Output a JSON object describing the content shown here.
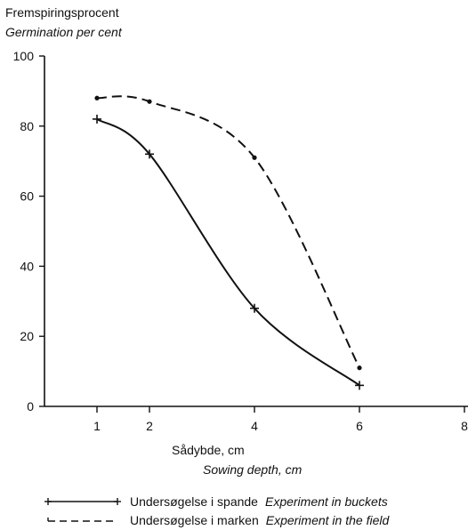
{
  "chart_data": {
    "type": "line",
    "ylabel_line1": "Fremspiringsprocent",
    "ylabel_line2": "Germination per cent",
    "xlabel_line1": "Sådybde, cm",
    "xlabel_line2": "Sowing depth, cm",
    "xlim": [
      0,
      8
    ],
    "ylim": [
      0,
      100
    ],
    "x_ticks": [
      1,
      2,
      4,
      6,
      8
    ],
    "y_ticks": [
      0,
      20,
      40,
      60,
      80,
      100
    ],
    "grid": false,
    "legend_position": "bottom",
    "series": [
      {
        "name": "Undersøgelse i spande",
        "name_en": "Experiment in buckets",
        "line_style": "solid",
        "marker": "plus",
        "x": [
          1,
          2,
          4,
          6
        ],
        "values": [
          82,
          72,
          28,
          6
        ]
      },
      {
        "name": "Undersøgelse i marken",
        "name_en": "Experiment in the field",
        "line_style": "dashed",
        "marker": "dot",
        "x": [
          1,
          2,
          4,
          6
        ],
        "values": [
          88,
          87,
          71,
          11
        ]
      }
    ]
  }
}
